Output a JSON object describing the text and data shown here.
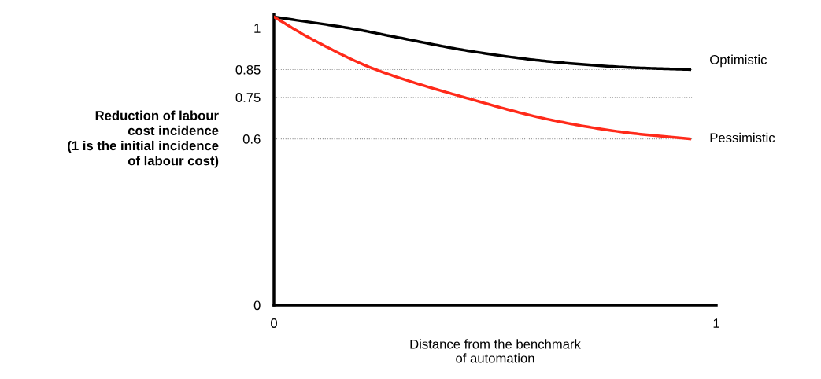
{
  "chart_data": {
    "type": "line",
    "xlabel": "Distance from the benchmark\nof automation",
    "ylabel": "Reduction of labour\ncost incidence\n(1 is the initial incidence\nof labour cost)",
    "xlim": [
      0,
      1
    ],
    "xticks": [
      0,
      1
    ],
    "ylim": [
      0,
      1.05
    ],
    "yticks": [
      0,
      0.6,
      0.75,
      0.85,
      1
    ],
    "marker": "none",
    "line_style": "solid",
    "grid": false,
    "legend": false,
    "ref_lines": [
      {
        "axis": "y",
        "value": 0.85,
        "color": "#999999",
        "line_style": "dotted"
      },
      {
        "axis": "y",
        "value": 0.75,
        "color": "#999999",
        "line_style": "dotted"
      },
      {
        "axis": "y",
        "value": 0.6,
        "color": "#999999",
        "line_style": "dotted"
      }
    ],
    "series": [
      {
        "name": "Optimistic",
        "color": "#000000",
        "x": [
          0,
          0.18,
          0.27,
          0.45,
          0.63,
          0.8,
          0.94
        ],
        "values": [
          1.04,
          0.997,
          0.969,
          0.915,
          0.878,
          0.858,
          0.85
        ]
      },
      {
        "name": "Pessimistic",
        "color": "#ff2a1a",
        "x": [
          0,
          0.09,
          0.23,
          0.43,
          0.63,
          0.8,
          0.94
        ],
        "values": [
          1.04,
          0.956,
          0.85,
          0.75,
          0.667,
          0.622,
          0.6
        ]
      }
    ]
  }
}
